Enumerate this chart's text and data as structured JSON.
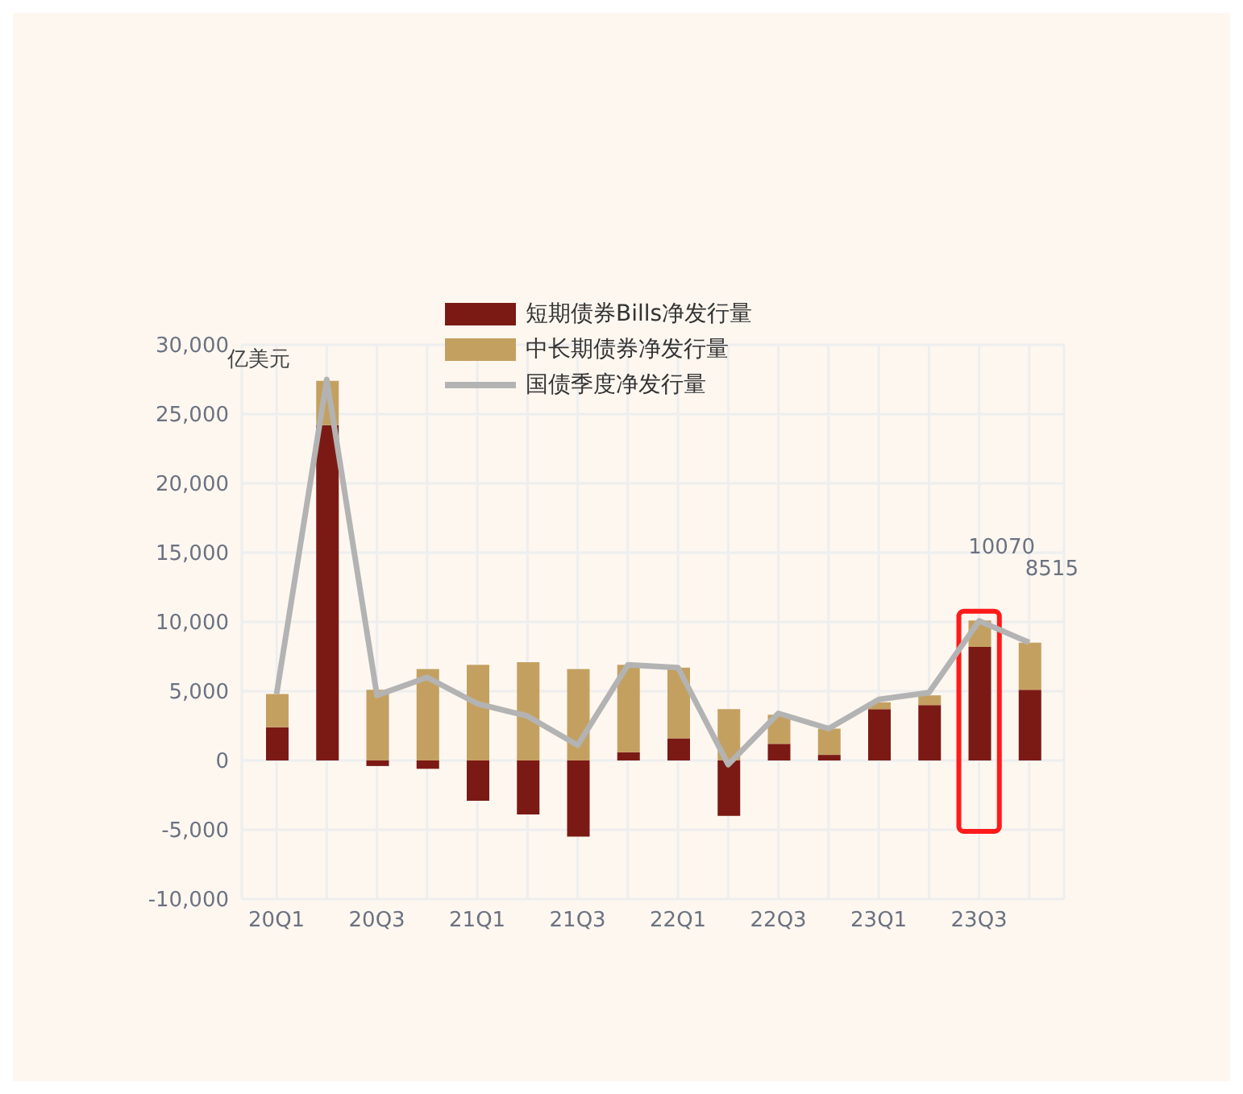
{
  "chart_data": {
    "type": "bar",
    "stacked": true,
    "annotations": [
      "亿美元"
    ],
    "categories": [
      "20Q1",
      null,
      "20Q3",
      null,
      "21Q1",
      null,
      "21Q3",
      null,
      "22Q1",
      null,
      "22Q3",
      null,
      "23Q1",
      null,
      "23Q3",
      null
    ],
    "series": [
      {
        "name": "短期债券Bills净发行量",
        "color": "#7b1a14",
        "values": [
          2400,
          24200,
          -400,
          -600,
          -2900,
          -3900,
          -5500,
          600,
          1600,
          -4000,
          1200,
          400,
          3700,
          4000,
          8200,
          5100
        ]
      },
      {
        "name": "中长期债券净发行量",
        "color": "#c4a060",
        "values": [
          2400,
          3200,
          5100,
          6600,
          6900,
          7100,
          6600,
          6300,
          5100,
          3700,
          2100,
          1900,
          500,
          700,
          1900,
          3400
        ]
      },
      {
        "name": "国债季度净发行量",
        "type": "line",
        "color": "#b3b3b3",
        "marker": "none",
        "values": [
          4800,
          27500,
          4700,
          6000,
          4100,
          3200,
          1100,
          6900,
          6700,
          -300,
          3400,
          2300,
          4400,
          4900,
          10070,
          8515
        ],
        "value_labels": [
          null,
          null,
          null,
          null,
          null,
          null,
          null,
          null,
          null,
          null,
          null,
          null,
          null,
          null,
          "10070",
          "8515"
        ]
      }
    ],
    "ylim": [
      -10000,
      30000
    ],
    "yticks": [
      {
        "value": -10000,
        "label": "-10,000"
      },
      {
        "value": -5000,
        "label": "-5,000"
      },
      0,
      {
        "value": 5000,
        "label": "5,000"
      },
      {
        "value": 10000,
        "label": "10,000"
      },
      {
        "value": 15000,
        "label": "15,000"
      },
      {
        "value": 20000,
        "label": "20,000"
      },
      {
        "value": 25000,
        "label": "25,000"
      },
      {
        "value": 30000,
        "label": "30,000"
      }
    ],
    "grid": true,
    "legend": "top"
  }
}
